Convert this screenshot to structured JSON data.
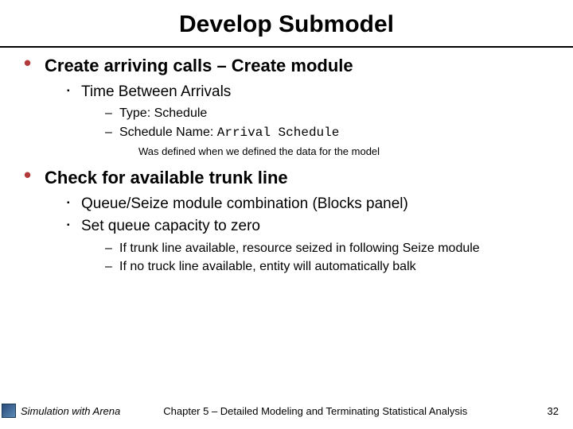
{
  "title": "Develop Submodel",
  "accent_color": "#b33a3a",
  "bullets": [
    {
      "text": "Create arriving calls – Create module",
      "children_lvl2": [
        {
          "text": "Time Between Arrivals",
          "children_lvl3": [
            {
              "text": "Type: Schedule"
            },
            {
              "prefix": "Schedule Name: ",
              "mono": "Arrival Schedule"
            }
          ],
          "note": "Was defined when we defined the data for the model"
        }
      ]
    },
    {
      "text": "Check for available trunk line",
      "children_lvl2": [
        {
          "text": "Queue/Seize module combination (Blocks panel)"
        },
        {
          "text": "Set queue capacity to zero",
          "children_lvl3": [
            {
              "text": "If trunk line available, resource seized in following Seize module"
            },
            {
              "text": "If no truck line available, entity will automatically balk"
            }
          ]
        }
      ]
    }
  ],
  "footer": {
    "left": "Simulation with Arena",
    "center": "Chapter 5 – Detailed Modeling and Terminating Statistical Analysis",
    "page": "32"
  }
}
